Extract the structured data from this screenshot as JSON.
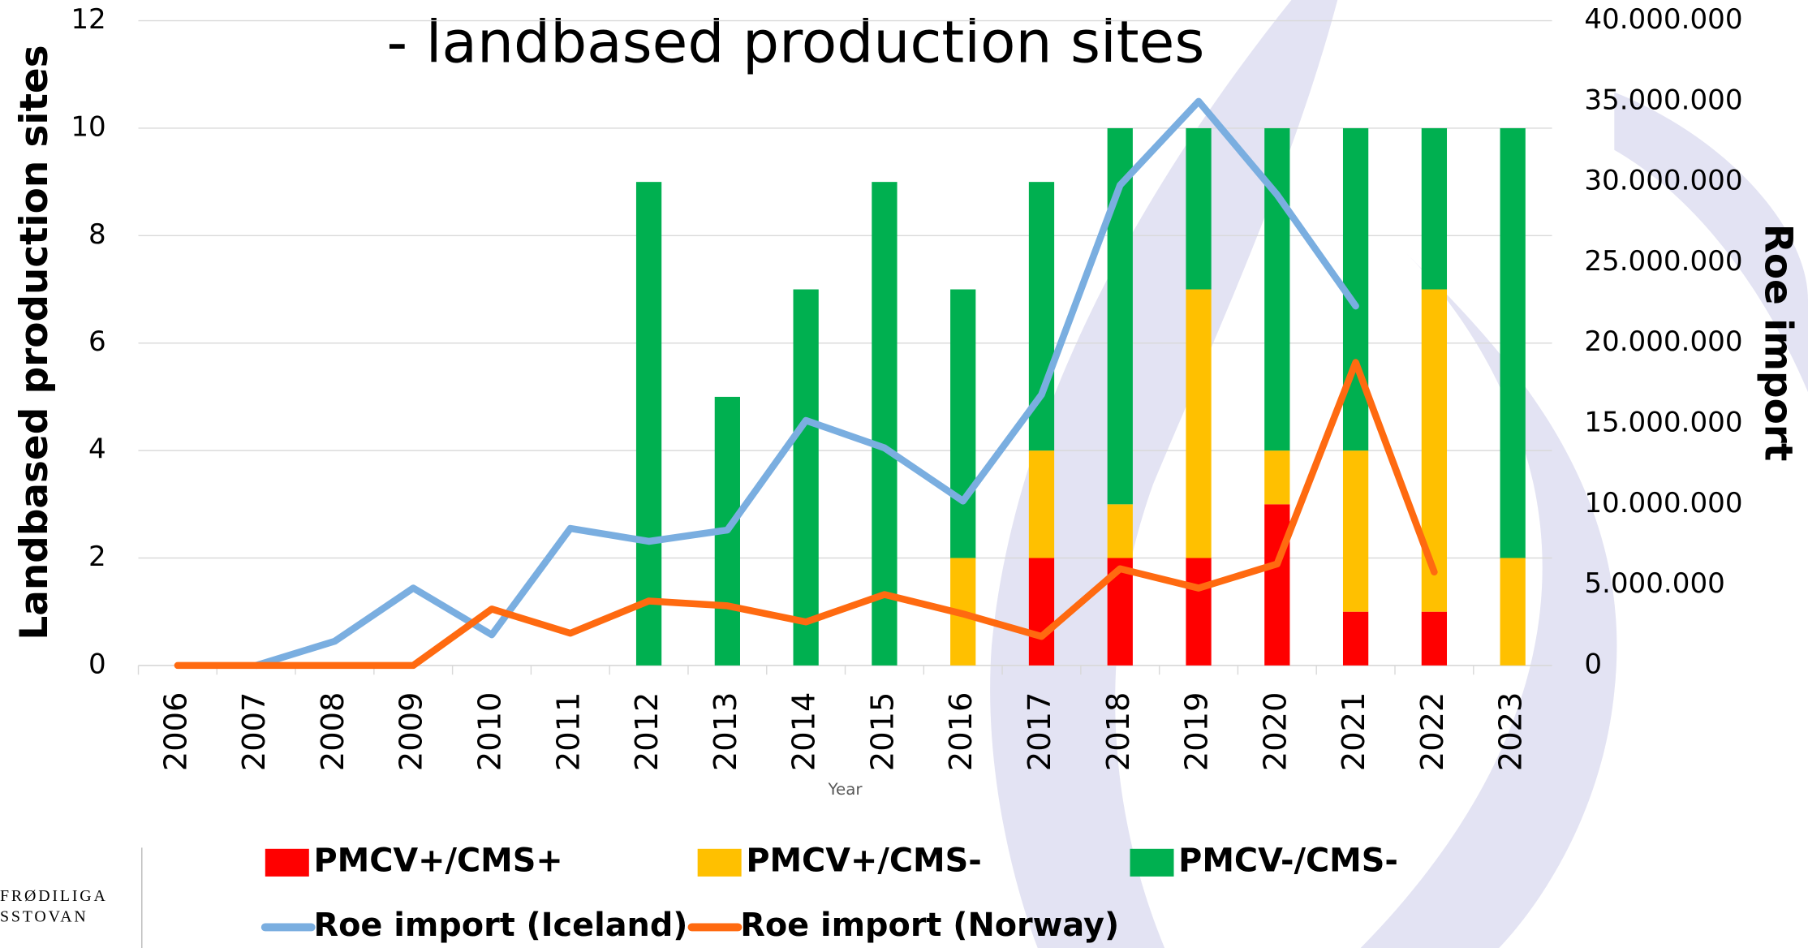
{
  "chart_data": {
    "type": "bar",
    "stacked": true,
    "title": "- landbased production sites",
    "ylabel": "Landbased production sites",
    "y2label": "Roe import",
    "xlabel": "Year",
    "categories": [
      "2006",
      "2007",
      "2008",
      "2009",
      "2010",
      "2011",
      "2012",
      "2013",
      "2014",
      "2015",
      "2016",
      "2017",
      "2018",
      "2019",
      "2020",
      "2021",
      "2022",
      "2023"
    ],
    "ylim": [
      0,
      12
    ],
    "yticks": [
      0,
      2,
      4,
      6,
      8,
      10,
      12
    ],
    "y2lim": [
      0,
      40000000
    ],
    "y2ticks": [
      {
        "value": 0,
        "label": "0"
      },
      {
        "value": 5000000,
        "label": "5.000.000"
      },
      {
        "value": 10000000,
        "label": "10.000.000"
      },
      {
        "value": 15000000,
        "label": "15.000.000"
      },
      {
        "value": 20000000,
        "label": "20.000.000"
      },
      {
        "value": 25000000,
        "label": "25.000.000"
      },
      {
        "value": 30000000,
        "label": "30.000.000"
      },
      {
        "value": 35000000,
        "label": "35.000.000"
      },
      {
        "value": 40000000,
        "label": "40.000.000"
      }
    ],
    "grid": true,
    "series": [
      {
        "name": "PMCV+/CMS+",
        "type": "bar",
        "color": "#ff0000",
        "values": [
          0,
          0,
          0,
          0,
          0,
          0,
          0,
          0,
          0,
          0,
          0,
          2,
          2,
          2,
          3,
          1,
          1,
          0
        ]
      },
      {
        "name": "PMCV+/CMS-",
        "type": "bar",
        "color": "#ffc000",
        "values": [
          0,
          0,
          0,
          0,
          0,
          0,
          0,
          0,
          0,
          0,
          2,
          2,
          1,
          5,
          1,
          3,
          6,
          2
        ]
      },
      {
        "name": "PMCV-/CMS-",
        "type": "bar",
        "color": "#00b050",
        "values": [
          0,
          0,
          0,
          0,
          0,
          0,
          9,
          5,
          7,
          9,
          5,
          5,
          7,
          3,
          6,
          6,
          3,
          8
        ]
      },
      {
        "name": "Roe import (Iceland)",
        "type": "line",
        "axis": "y2",
        "color": "#7aaee0",
        "values": [
          null,
          0,
          1500000,
          4800000,
          1900000,
          8500000,
          7700000,
          8400000,
          15200000,
          13500000,
          10200000,
          16800000,
          29800000,
          35000000,
          29200000,
          22300000,
          null,
          null
        ]
      },
      {
        "name": "Roe import (Norway)",
        "type": "line",
        "axis": "y2",
        "color": "#ff6a10",
        "values": [
          0,
          0,
          0,
          0,
          3500000,
          2000000,
          4000000,
          3700000,
          2700000,
          4400000,
          3200000,
          1800000,
          6000000,
          4800000,
          6300000,
          18800000,
          5800000,
          null
        ]
      }
    ],
    "logo": [
      "FRØDILIGA",
      "SSTOVAN"
    ]
  }
}
